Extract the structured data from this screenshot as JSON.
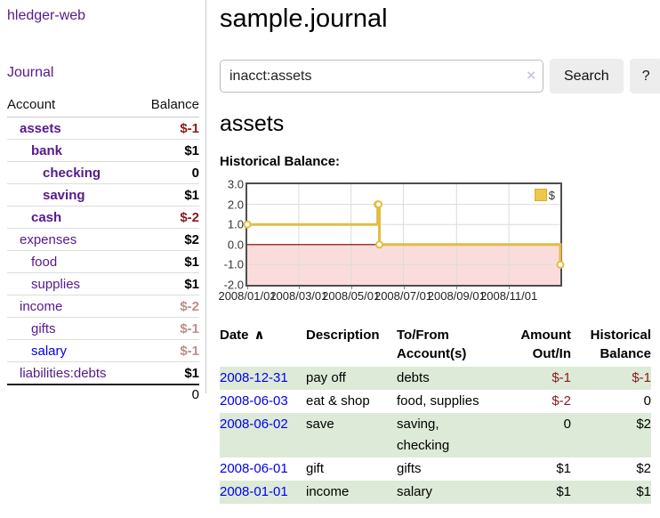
{
  "app": {
    "brand": "hledger-web",
    "nav": {
      "journal": "Journal"
    }
  },
  "sidebar": {
    "header": {
      "account": "Account",
      "balance": "Balance"
    },
    "accounts": [
      {
        "name": "assets",
        "balance": "$-1",
        "level": 1,
        "matched": true,
        "balance_tone": "negative"
      },
      {
        "name": "bank",
        "balance": "$1",
        "level": 2,
        "matched": true,
        "balance_tone": "positive"
      },
      {
        "name": "checking",
        "balance": "0",
        "level": 3,
        "matched": true,
        "balance_tone": "positive"
      },
      {
        "name": "saving",
        "balance": "$1",
        "level": 3,
        "matched": true,
        "balance_tone": "positive"
      },
      {
        "name": "cash",
        "balance": "$-2",
        "level": 2,
        "matched": true,
        "balance_tone": "negative"
      },
      {
        "name": "expenses",
        "balance": "$2",
        "level": 1,
        "matched": false,
        "balance_tone": "positive"
      },
      {
        "name": "food",
        "balance": "$1",
        "level": 2,
        "matched": false,
        "balance_tone": "positive"
      },
      {
        "name": "supplies",
        "balance": "$1",
        "level": 2,
        "matched": false,
        "balance_tone": "positive"
      },
      {
        "name": "income",
        "balance": "$-2",
        "level": 1,
        "matched": false,
        "balance_tone": "negative-faded"
      },
      {
        "name": "gifts",
        "balance": "$-1",
        "level": 2,
        "matched": false,
        "balance_tone": "negative-faded"
      },
      {
        "name": "salary",
        "balance": "$-1",
        "level": 2,
        "matched": false,
        "balance_tone": "negative-faded",
        "link_tone": "unvisited"
      },
      {
        "name": "liabilities:debts",
        "balance": "$1",
        "level": 1,
        "matched": false,
        "balance_tone": "positive"
      }
    ],
    "total": "0"
  },
  "header": {
    "title": "sample.journal"
  },
  "search": {
    "value": "inacct:assets",
    "clear_icon": "×",
    "search_button": "Search",
    "help_button": "?"
  },
  "account_page": {
    "heading": "assets",
    "chart_title": "Historical Balance:"
  },
  "chart_data": {
    "type": "line",
    "step": true,
    "title": "Historical Balance",
    "series": [
      {
        "name": "$",
        "color": "#e3bc42",
        "points": [
          [
            "2008-01-01",
            1
          ],
          [
            "2008-06-01",
            2
          ],
          [
            "2008-06-02",
            2
          ],
          [
            "2008-06-03",
            0
          ],
          [
            "2008-12-31",
            -1
          ]
        ]
      }
    ],
    "ylim": [
      -2,
      3
    ],
    "yticks": [
      3,
      2,
      1,
      0,
      -1,
      -2
    ],
    "xticks": [
      "2008/01/01",
      "2008/03/01",
      "2008/05/01",
      "2008/07/01",
      "2008/09/01",
      "2008/11/01"
    ],
    "legend_position": "top-right",
    "grid": true,
    "negative_region_color": "#fadcdc",
    "zero_line_color": "#7e0000"
  },
  "register": {
    "sort_icon": "∧",
    "columns": [
      {
        "label": "Date",
        "sorted": true,
        "align": "left"
      },
      {
        "label": "Description",
        "align": "left"
      },
      {
        "label": "To/From\nAccount(s)",
        "align": "left"
      },
      {
        "label": "Amount\nOut/In",
        "align": "right"
      },
      {
        "label": "Historical\nBalance",
        "align": "right"
      }
    ],
    "rows": [
      {
        "date": "2008-12-31",
        "description": "pay off",
        "accounts": "debts",
        "amount": "$-1",
        "amount_negative": true,
        "balance": "$-1",
        "balance_negative": true
      },
      {
        "date": "2008-06-03",
        "description": "eat & shop",
        "accounts": "food, supplies",
        "amount": "$-2",
        "amount_negative": true,
        "balance": "0",
        "balance_negative": false
      },
      {
        "date": "2008-06-02",
        "description": "save",
        "accounts": "saving,\nchecking",
        "amount": "0",
        "amount_negative": false,
        "balance": "$2",
        "balance_negative": false
      },
      {
        "date": "2008-06-01",
        "description": "gift",
        "accounts": "gifts",
        "amount": "$1",
        "amount_negative": false,
        "balance": "$2",
        "balance_negative": false
      },
      {
        "date": "2008-01-01",
        "description": "income",
        "accounts": "salary",
        "amount": "$1",
        "amount_negative": false,
        "balance": "$1",
        "balance_negative": false
      }
    ]
  },
  "colors": {
    "link_purple": "#551a8b",
    "link_blue": "#0000ee",
    "negative_strong": "#8b1a1a",
    "negative_faded": "#bf8b8b",
    "row_stripe_green": "#dcead7",
    "chart_line_gold": "#e3bc42",
    "chart_negative_fill": "#fadcdc",
    "chart_zero_line": "#7e0000"
  }
}
